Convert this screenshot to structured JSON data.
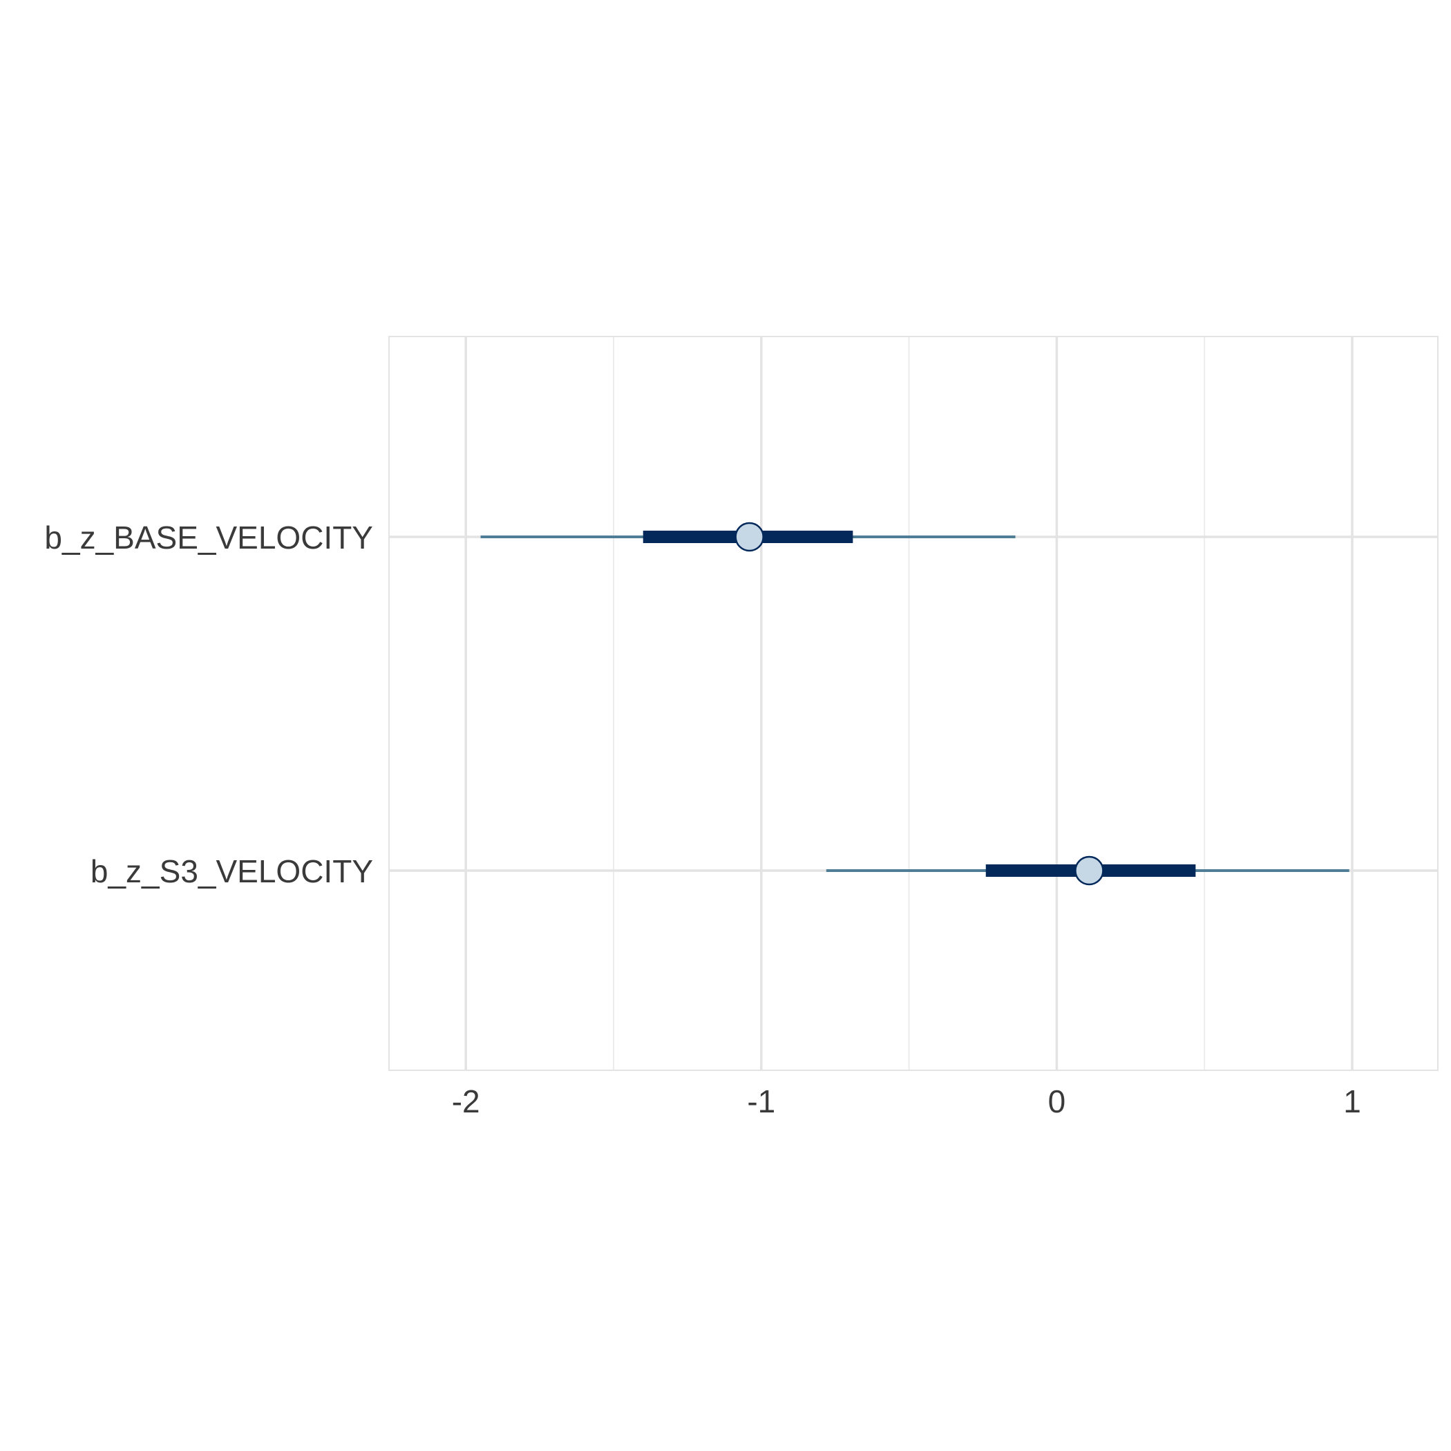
{
  "chart_data": {
    "type": "interval",
    "title": "",
    "xlabel": "",
    "ylabel": "",
    "xlim": [
      -2.26,
      1.29
    ],
    "x_ticks": [
      -2,
      -1,
      0,
      1
    ],
    "x_tick_labels": [
      "-2",
      "-1",
      "0",
      "1"
    ],
    "x_minor_ticks": [
      -1.5,
      -0.5,
      0.5
    ],
    "grid": true,
    "categories": [
      "b_z_BASE_VELOCITY",
      "b_z_S3_VELOCITY"
    ],
    "series": [
      {
        "parameter": "b_z_BASE_VELOCITY",
        "point": -1.04,
        "inner_interval": [
          -1.4,
          -0.69
        ],
        "outer_interval": [
          -1.95,
          -0.14
        ]
      },
      {
        "parameter": "b_z_S3_VELOCITY",
        "point": 0.11,
        "inner_interval": [
          -0.24,
          0.47
        ],
        "outer_interval": [
          -0.78,
          0.99
        ]
      }
    ],
    "colors": {
      "outer_line": "#4e7d95",
      "inner_line": "#03295b",
      "point_fill": "#c6d8e6",
      "point_stroke": "#03295b",
      "grid_major": "#e3e3e3",
      "grid_minor": "#ececec",
      "panel_border": "#e3e3e3"
    }
  }
}
